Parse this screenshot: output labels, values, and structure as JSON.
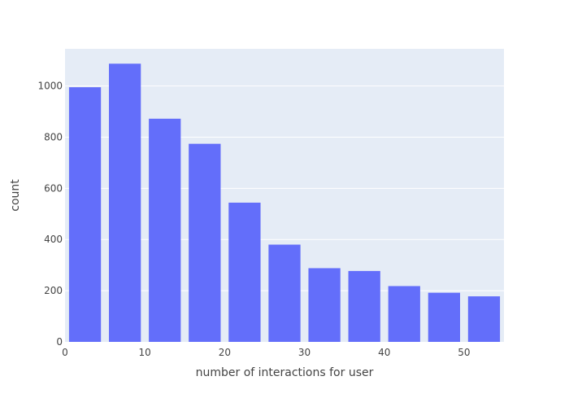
{
  "chart_data": {
    "type": "bar",
    "title": "",
    "xlabel": "number of interactions for user",
    "ylabel": "count",
    "x": [
      2.5,
      7.5,
      12.5,
      17.5,
      22.5,
      27.5,
      32.5,
      37.5,
      42.5,
      47.5,
      52.5
    ],
    "bin_width": 5,
    "values": [
      995,
      1087,
      872,
      774,
      544,
      380,
      288,
      277,
      218,
      192,
      178
    ],
    "xlim": [
      0,
      55
    ],
    "ylim": [
      0,
      1145
    ],
    "xticks": [
      0,
      10,
      20,
      30,
      40,
      50
    ],
    "yticks": [
      0,
      200,
      400,
      600,
      800,
      1000
    ],
    "grid": true,
    "colors": {
      "bar": "#636efa",
      "plot_background": "#e5ecf6",
      "gridline": "#ffffff",
      "text": "#444444"
    }
  }
}
